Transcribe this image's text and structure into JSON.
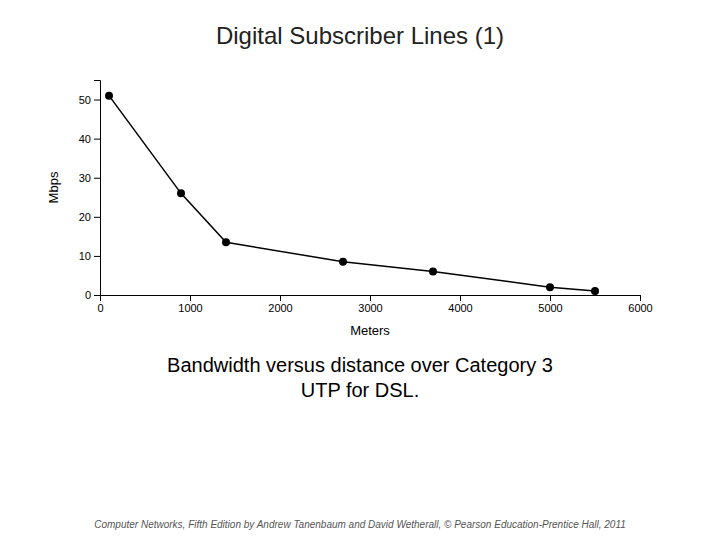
{
  "chart_data": {
    "type": "line",
    "title": "Digital Subscriber Lines (1)",
    "subtitle": "Bandwidth versus distance over Category 3\nUTP for DSL.",
    "footnote": "Computer Networks, Fifth Edition by Andrew Tanenbaum and David Wetherall, © Pearson Education-Prentice Hall, 2011",
    "xlabel": "Meters",
    "ylabel": "Mbps",
    "x": [
      100,
      900,
      1400,
      2700,
      3700,
      5000,
      5500
    ],
    "series": [
      {
        "values": [
          51,
          26,
          13.5,
          8.5,
          6,
          2,
          1
        ],
        "color": "#000000",
        "marker": "circle"
      }
    ],
    "xlim": [
      0,
      6000
    ],
    "ylim": [
      0,
      55
    ],
    "xticks": [
      0,
      1000,
      2000,
      3000,
      4000,
      5000,
      6000
    ],
    "yticks": [
      0,
      10,
      20,
      30,
      40,
      50
    ]
  }
}
